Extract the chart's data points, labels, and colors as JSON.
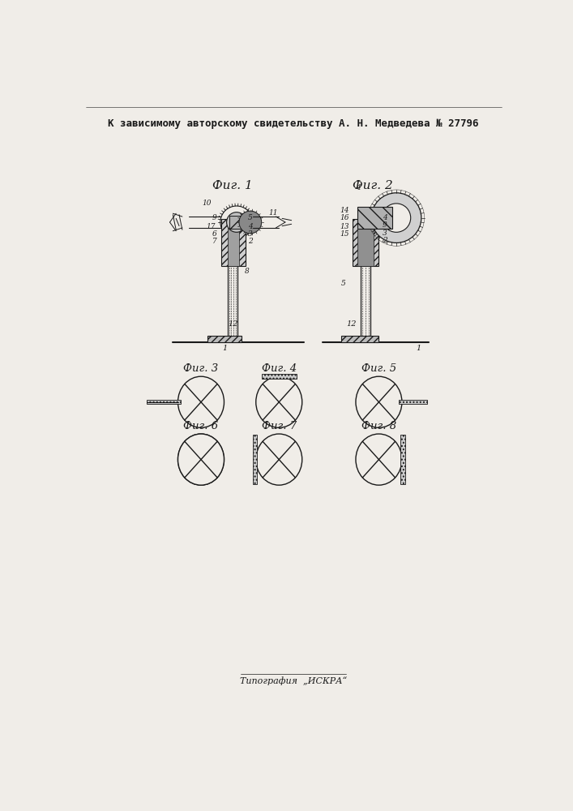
{
  "title_text": "К зависимому авторскому свидетельству А. Н. Медведева № 27796",
  "bottom_text": "Типография  „ИСКРА“",
  "background_color": "#f0ede8",
  "line_color": "#1a1a1a",
  "fig_labels": [
    "Фиг. 1",
    "Фиг. 2",
    "Фиг. 3",
    "Фиг. 4",
    "Фиг. 5",
    "Фиг. 6",
    "Фиг. 7",
    "Фиг. 8"
  ]
}
